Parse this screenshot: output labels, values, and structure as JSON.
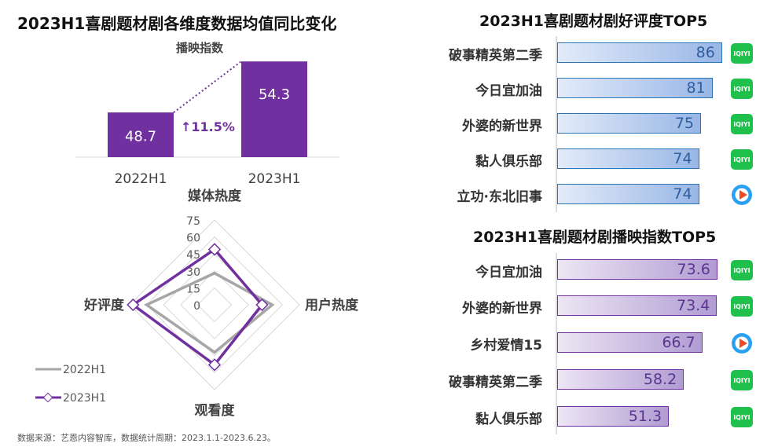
{
  "chart_data": [
    {
      "type": "bar",
      "title": "2023H1喜剧题材剧各维度数据均值同比变化",
      "subtitle": "播映指数",
      "categories": [
        "2022H1",
        "2023H1"
      ],
      "values": [
        48.7,
        54.3
      ],
      "annotation": "↑11.5%",
      "ylim": [
        43.8,
        57
      ],
      "color": "#7030a0"
    },
    {
      "type": "radar",
      "axes": [
        "媒体热度",
        "用户热度",
        "观看度",
        "好评度"
      ],
      "ticks": [
        "0",
        "15",
        "30",
        "45",
        "60",
        "75"
      ],
      "range": [
        0,
        75
      ],
      "series": [
        {
          "name": "2022H1",
          "values": [
            28,
            51,
            42,
            60
          ],
          "color": "#a6a6a6"
        },
        {
          "name": "2023H1",
          "values": [
            49,
            42,
            53,
            72
          ],
          "color": "#7030a0"
        }
      ]
    },
    {
      "type": "bar",
      "orientation": "horizontal",
      "title": "2023H1喜剧题材剧好评度TOP5",
      "categories": [
        "破事精英第二季",
        "今日宜加油",
        "外婆的新世界",
        "黏人俱乐部",
        "立功·东北旧事"
      ],
      "values": [
        86,
        81,
        75,
        74,
        74
      ],
      "platforms": [
        "iqiyi",
        "iqiyi",
        "iqiyi",
        "iqiyi",
        "tencent"
      ],
      "color": "#2e75b6"
    },
    {
      "type": "bar",
      "orientation": "horizontal",
      "title": "2023H1喜剧题材剧播映指数TOP5",
      "categories": [
        "今日宜加油",
        "外婆的新世界",
        "乡村爱情15",
        "破事精英第二季",
        "黏人俱乐部"
      ],
      "values": [
        73.6,
        73.4,
        66.7,
        58.2,
        51.3
      ],
      "platforms": [
        "iqiyi",
        "iqiyi",
        "tencent",
        "iqiyi",
        "iqiyi"
      ],
      "color": "#7030a0"
    }
  ],
  "logos": {
    "iqiyi": "iQIYI"
  },
  "source": "数据来源：艺恩内容智库，数据统计周期：2023.1.1-2023.6.23。"
}
